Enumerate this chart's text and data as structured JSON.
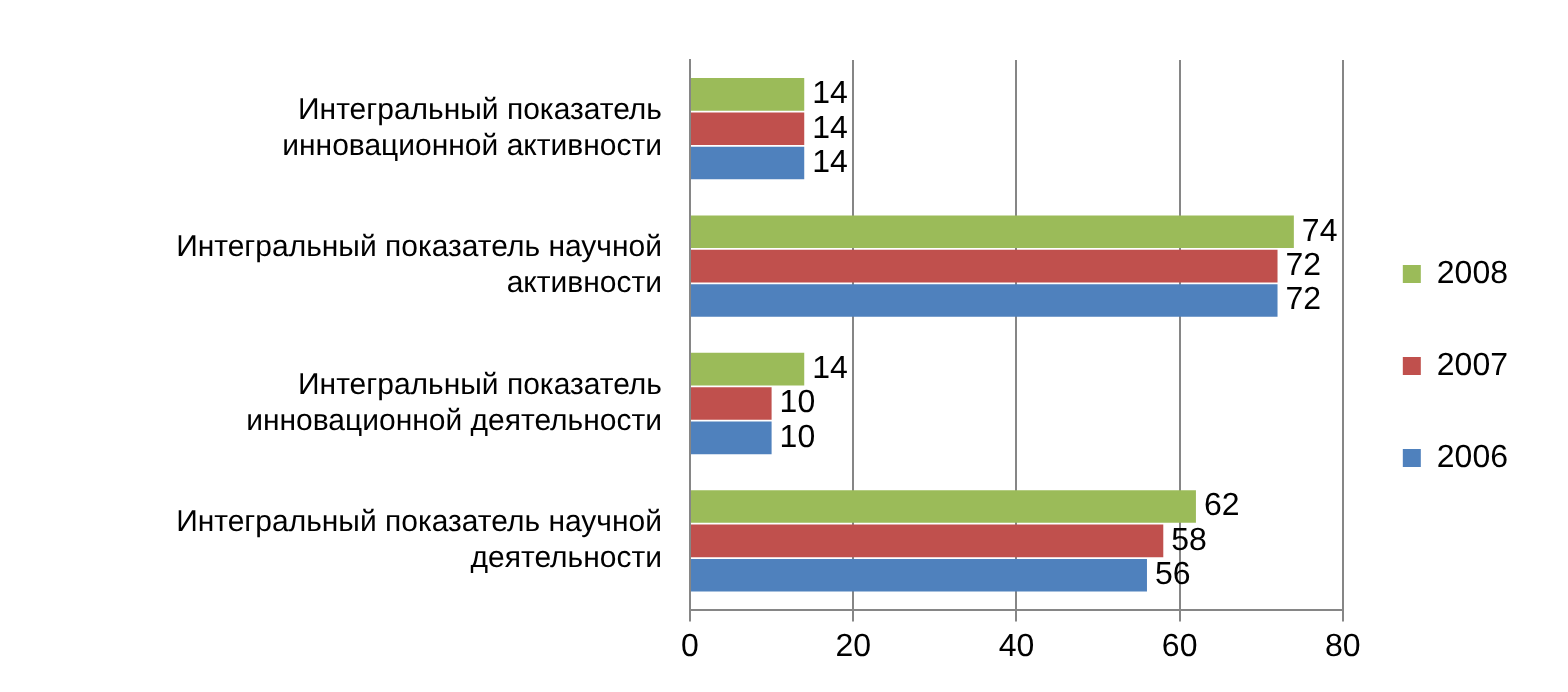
{
  "chart_data": {
    "type": "bar",
    "orientation": "horizontal",
    "categories": [
      "Интегральный показатель инновационной активности",
      "Интегральный показатель научной активности",
      "Интегральный показатель инновационной деятельности",
      "Интегральный показатель научной деятельности"
    ],
    "series": [
      {
        "name": "2008",
        "color": "#9bbb59",
        "values": [
          14,
          74,
          14,
          62
        ]
      },
      {
        "name": "2007",
        "color": "#c0504d",
        "values": [
          14,
          72,
          10,
          58
        ]
      },
      {
        "name": "2006",
        "color": "#4f81bd",
        "values": [
          14,
          72,
          10,
          56
        ]
      }
    ],
    "xlim": [
      0,
      80
    ],
    "xticks": [
      0,
      20,
      40,
      60,
      80
    ],
    "grid": "x",
    "legend": "right",
    "data_labels": true
  }
}
